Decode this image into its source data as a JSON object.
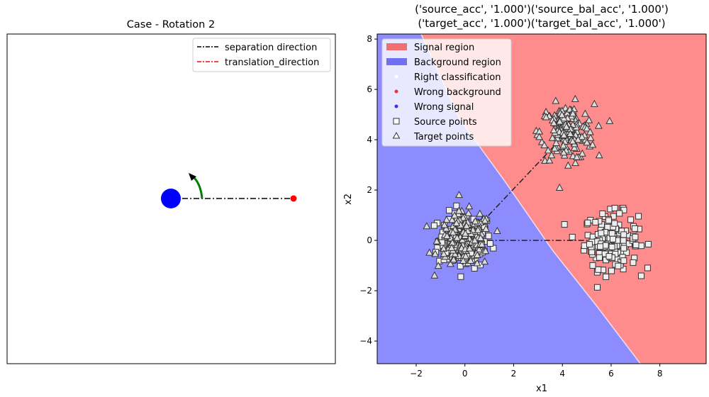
{
  "chart_data": [
    {
      "type": "diagram",
      "title": "Case - Rotation 2",
      "legend": [
        {
          "label": "separation direction",
          "color": "#000000",
          "style": "dashdot"
        },
        {
          "label": "translation_direction",
          "color": "#ff0000",
          "style": "dashdot"
        }
      ],
      "legend_position": "top-right",
      "colors": {
        "circle": "#0000ff",
        "endpoint": "#ff0000",
        "arrow": "#008000",
        "line": "#000000"
      }
    },
    {
      "type": "scatter",
      "title_lines": [
        "('source_acc', '1.000')('source_bal_acc', '1.000')",
        "('target_acc', '1.000')('target_bal_acc', '1.000')"
      ],
      "xlabel": "x1",
      "ylabel": "x2",
      "xlim": [
        -3.6,
        9.9
      ],
      "ylim": [
        -4.9,
        8.2
      ],
      "xticks": [
        -2,
        0,
        2,
        4,
        6,
        8
      ],
      "yticks": [
        -4,
        -2,
        0,
        2,
        4,
        6,
        8
      ],
      "regions": {
        "signal_color": "#ff8c8c",
        "background_color": "#8c8cff",
        "boundary": [
          [
            -1.8,
            8.2
          ],
          [
            -0.2,
            4.8
          ],
          [
            1.6,
            2.4
          ],
          [
            3.6,
            -0.4
          ],
          [
            5.4,
            -2.6
          ],
          [
            7.2,
            -4.9
          ]
        ]
      },
      "clusters": [
        {
          "name": "source background",
          "marker": "square",
          "center": [
            0,
            0
          ],
          "spread": 0.55,
          "count": 160
        },
        {
          "name": "source signal",
          "marker": "square",
          "center": [
            6,
            0
          ],
          "spread": 0.55,
          "count": 160
        },
        {
          "name": "target background",
          "marker": "triangle",
          "center": [
            0,
            0
          ],
          "spread": 0.55,
          "count": 160
        },
        {
          "name": "target signal",
          "marker": "triangle",
          "center": [
            4.2,
            4.3
          ],
          "spread": 0.55,
          "count": 160
        }
      ],
      "dashdot_lines": [
        {
          "from": [
            0,
            0
          ],
          "to": [
            6,
            0
          ]
        },
        {
          "from": [
            0,
            0
          ],
          "to": [
            4.2,
            4.3
          ]
        }
      ],
      "legend": [
        {
          "label": "Signal region",
          "kind": "patch",
          "color": "#f07070"
        },
        {
          "label": "Background region",
          "kind": "patch",
          "color": "#7070f0"
        },
        {
          "label": "Right classification",
          "kind": "dot",
          "color": "#ffffff"
        },
        {
          "label": "Wrong background",
          "kind": "dot",
          "color": "#ee3333"
        },
        {
          "label": "Wrong signal",
          "kind": "dot",
          "color": "#3333ee"
        },
        {
          "label": "Source points",
          "kind": "square",
          "color": "#ffffff"
        },
        {
          "label": "Target points",
          "kind": "triangle",
          "color": "#ffffff"
        }
      ],
      "legend_position": "top-left"
    }
  ]
}
